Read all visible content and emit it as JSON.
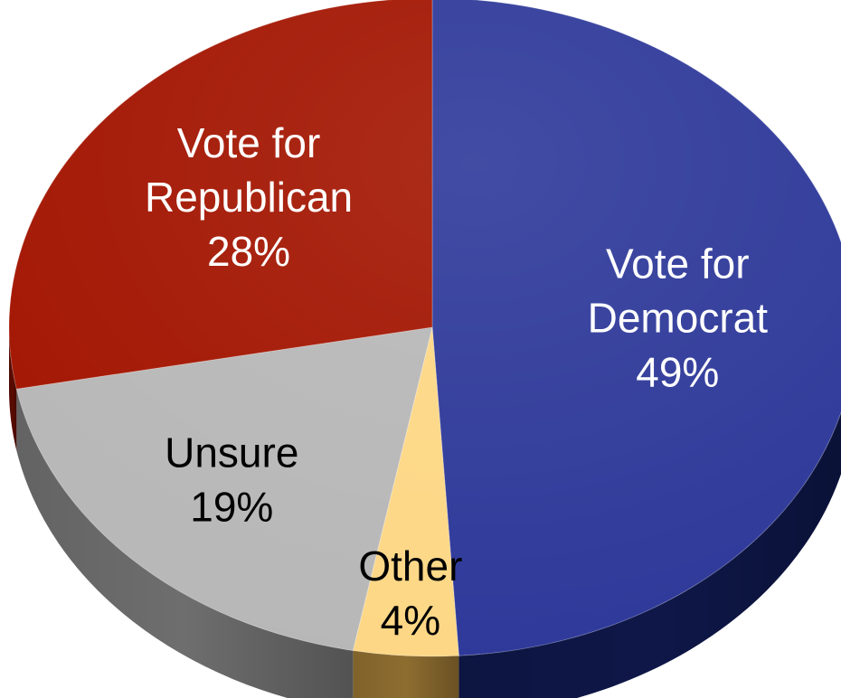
{
  "chart_data": {
    "type": "pie",
    "title": "",
    "three_d": true,
    "start_angle": "top",
    "direction": "clockwise",
    "slices": [
      {
        "label_lines": [
          "Vote for",
          "Democrat"
        ],
        "value": 49,
        "value_label": "49%",
        "color": "#2d3899",
        "side_color": "#0e1748",
        "text_color": "#ffffff"
      },
      {
        "label_lines": [
          "Other"
        ],
        "value": 4,
        "value_label": "4%",
        "color": "#fdd785",
        "side_color": "#8e6d30",
        "text_color": "#000000"
      },
      {
        "label_lines": [
          "Unsure"
        ],
        "value": 19,
        "value_label": "19%",
        "color": "#b7b7b7",
        "side_color": "#6e6e6e",
        "text_color": "#000000"
      },
      {
        "label_lines": [
          "Vote for",
          "Republican"
        ],
        "value": 28,
        "value_label": "28%",
        "color": "#a21400",
        "side_color": "#5a0b00",
        "text_color": "#ffffff"
      }
    ]
  }
}
